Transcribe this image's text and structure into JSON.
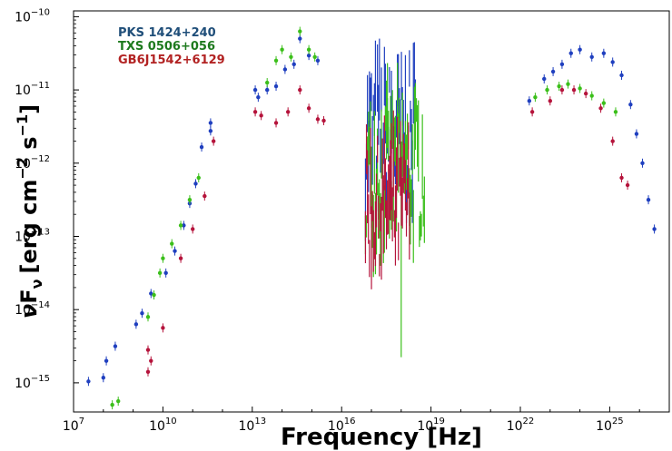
{
  "chart_data": {
    "type": "scatter",
    "title": "",
    "xlabel": "Frequency [Hz]",
    "ylabel_parts": {
      "nu": "ν",
      "F": "F",
      "sub_nu": "ν",
      "bracket_open": "[erg cm",
      "exp1": "−2",
      "mid": " s",
      "exp2": "−1",
      "bracket_close": "]"
    },
    "xscale": "log",
    "yscale": "log",
    "xlim": [
      10000000.0,
      1e+27
    ],
    "ylim": [
      4e-16,
      1.2e-10
    ],
    "grid": false,
    "legend_position": "top-left",
    "x_ticks": [
      {
        "exp": 7,
        "label_base": "10",
        "label_exp": "7"
      },
      {
        "exp": 10,
        "label_base": "10",
        "label_exp": "10"
      },
      {
        "exp": 13,
        "label_base": "10",
        "label_exp": "13"
      },
      {
        "exp": 16,
        "label_base": "10",
        "label_exp": "16"
      },
      {
        "exp": 19,
        "label_base": "10",
        "label_exp": "19"
      },
      {
        "exp": 22,
        "label_base": "10",
        "label_exp": "22"
      },
      {
        "exp": 25,
        "label_base": "10",
        "label_exp": "25"
      }
    ],
    "y_ticks": [
      {
        "exp": -15,
        "label_base": "10",
        "label_exp": "−15"
      },
      {
        "exp": -14,
        "label_base": "10",
        "label_exp": "−14"
      },
      {
        "exp": -13,
        "label_base": "10",
        "label_exp": "−13"
      },
      {
        "exp": -12,
        "label_base": "10",
        "label_exp": "−12"
      },
      {
        "exp": -11,
        "label_base": "10",
        "label_exp": "−11"
      },
      {
        "exp": -10,
        "label_base": "10",
        "label_exp": "−10"
      }
    ],
    "series": [
      {
        "name": "PKS 1424+240",
        "color": "#1f3fbf",
        "legend_color": "#1f4e79",
        "points": [
          [
            7.5,
            -14.98
          ],
          [
            8.0,
            -14.93
          ],
          [
            8.1,
            -14.7
          ],
          [
            8.4,
            -14.5
          ],
          [
            9.1,
            -14.2
          ],
          [
            9.3,
            -14.05
          ],
          [
            9.6,
            -13.78
          ],
          [
            10.1,
            -13.5
          ],
          [
            10.4,
            -13.2
          ],
          [
            10.7,
            -12.85
          ],
          [
            10.9,
            -12.55
          ],
          [
            11.1,
            -12.28
          ],
          [
            11.3,
            -11.78
          ],
          [
            11.6,
            -11.45
          ],
          [
            11.6,
            -11.56
          ],
          [
            13.1,
            -11.0
          ],
          [
            13.2,
            -11.1
          ],
          [
            13.5,
            -11.0
          ],
          [
            13.8,
            -10.95
          ],
          [
            14.1,
            -10.72
          ],
          [
            14.4,
            -10.65
          ],
          [
            14.6,
            -10.3
          ],
          [
            14.9,
            -10.53
          ],
          [
            15.2,
            -10.6
          ],
          [
            22.3,
            -11.15
          ],
          [
            22.8,
            -10.85
          ],
          [
            23.1,
            -10.75
          ],
          [
            23.4,
            -10.65
          ],
          [
            23.7,
            -10.5
          ],
          [
            24.0,
            -10.45
          ],
          [
            24.4,
            -10.55
          ],
          [
            24.8,
            -10.5
          ],
          [
            25.1,
            -10.62
          ],
          [
            25.4,
            -10.8
          ],
          [
            25.7,
            -11.2
          ],
          [
            25.9,
            -11.6
          ],
          [
            26.1,
            -12.0
          ],
          [
            26.3,
            -12.5
          ],
          [
            26.5,
            -12.9
          ]
        ],
        "band": {
          "x_from": 16.8,
          "x_to": 18.5,
          "y_low": -12.5,
          "y_high": -10.7
        }
      },
      {
        "name": "TXS 0506+056",
        "color": "#3bbf1a",
        "legend_color": "#1e7a1e",
        "points": [
          [
            8.3,
            -15.3
          ],
          [
            8.5,
            -15.25
          ],
          [
            9.5,
            -14.1
          ],
          [
            9.7,
            -13.8
          ],
          [
            9.9,
            -13.5
          ],
          [
            10.0,
            -13.3
          ],
          [
            10.3,
            -13.1
          ],
          [
            10.6,
            -12.85
          ],
          [
            10.9,
            -12.5
          ],
          [
            11.2,
            -12.2
          ],
          [
            13.5,
            -10.9
          ],
          [
            13.8,
            -10.6
          ],
          [
            14.0,
            -10.45
          ],
          [
            14.3,
            -10.55
          ],
          [
            14.6,
            -10.2
          ],
          [
            14.9,
            -10.45
          ],
          [
            15.1,
            -10.55
          ],
          [
            22.5,
            -11.1
          ],
          [
            22.9,
            -11.0
          ],
          [
            23.3,
            -10.95
          ],
          [
            23.6,
            -10.92
          ],
          [
            24.0,
            -10.98
          ],
          [
            24.4,
            -11.08
          ],
          [
            24.8,
            -11.18
          ],
          [
            25.2,
            -11.3
          ]
        ],
        "band": {
          "x_from": 16.8,
          "x_to": 18.8,
          "y_low": -13.0,
          "y_high": -11.2
        },
        "spike": {
          "x": 18.0,
          "y_top": -12.4,
          "y_bottom": -14.65
        }
      },
      {
        "name": "GB6J1542+6129",
        "color": "#b5133b",
        "legend_color": "#b22222",
        "points": [
          [
            9.5,
            -14.85
          ],
          [
            9.6,
            -14.7
          ],
          [
            9.5,
            -14.55
          ],
          [
            10.0,
            -14.25
          ],
          [
            10.6,
            -13.3
          ],
          [
            11.0,
            -12.9
          ],
          [
            11.4,
            -12.45
          ],
          [
            11.7,
            -11.7
          ],
          [
            13.1,
            -11.3
          ],
          [
            13.3,
            -11.35
          ],
          [
            13.8,
            -11.45
          ],
          [
            14.2,
            -11.3
          ],
          [
            14.6,
            -11.0
          ],
          [
            14.9,
            -11.25
          ],
          [
            15.2,
            -11.4
          ],
          [
            15.4,
            -11.42
          ],
          [
            22.4,
            -11.3
          ],
          [
            23.0,
            -11.15
          ],
          [
            23.4,
            -11.0
          ],
          [
            23.8,
            -11.0
          ],
          [
            24.2,
            -11.05
          ],
          [
            24.7,
            -11.25
          ],
          [
            25.1,
            -11.7
          ],
          [
            25.4,
            -12.2
          ],
          [
            25.6,
            -12.3
          ]
        ],
        "band": {
          "x_from": 16.8,
          "x_to": 18.3,
          "y_low": -13.4,
          "y_high": -11.8
        }
      }
    ]
  }
}
